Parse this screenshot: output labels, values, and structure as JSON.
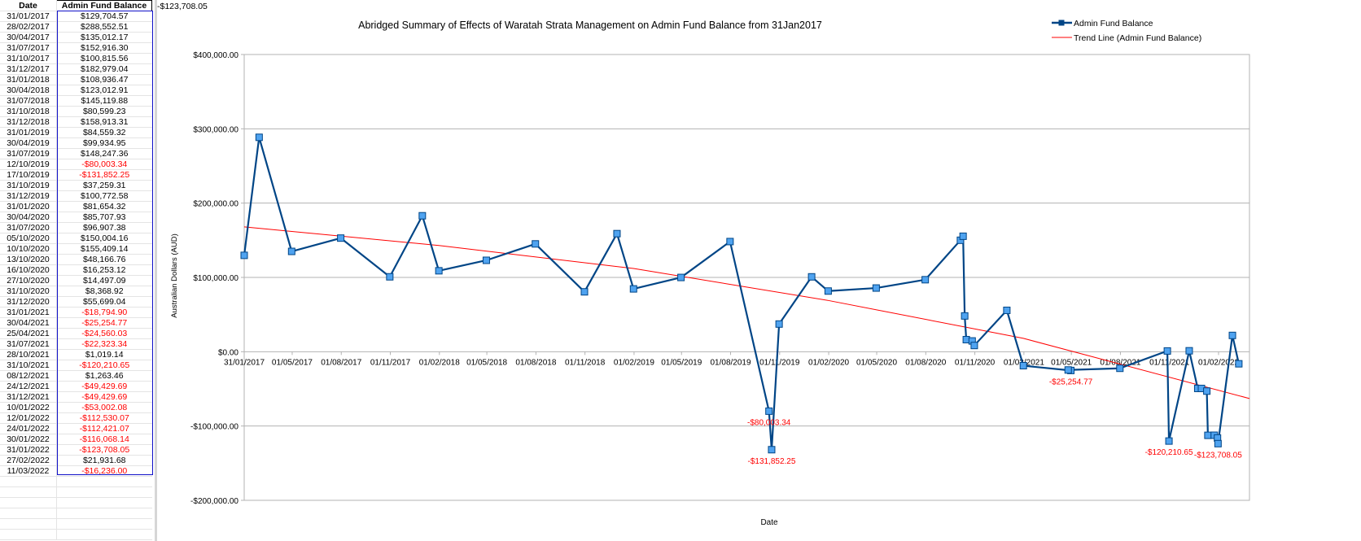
{
  "sheet": {
    "header_date": "Date",
    "header_value": "Admin Fund Balance",
    "overflow_cell": "-$123,708.05",
    "rows": [
      {
        "date": "31/01/2017",
        "value": "$129,704.57"
      },
      {
        "date": "28/02/2017",
        "value": "$288,552.51"
      },
      {
        "date": "30/04/2017",
        "value": "$135,012.17"
      },
      {
        "date": "31/07/2017",
        "value": "$152,916.30"
      },
      {
        "date": "31/10/2017",
        "value": "$100,815.56"
      },
      {
        "date": "31/12/2017",
        "value": "$182,979.04"
      },
      {
        "date": "31/01/2018",
        "value": "$108,936.47"
      },
      {
        "date": "30/04/2018",
        "value": "$123,012.91"
      },
      {
        "date": "31/07/2018",
        "value": "$145,119.88"
      },
      {
        "date": "31/10/2018",
        "value": "$80,599.23"
      },
      {
        "date": "31/12/2018",
        "value": "$158,913.31"
      },
      {
        "date": "31/01/2019",
        "value": "$84,559.32"
      },
      {
        "date": "30/04/2019",
        "value": "$99,934.95"
      },
      {
        "date": "31/07/2019",
        "value": "$148,247.36"
      },
      {
        "date": "12/10/2019",
        "value": "-$80,003.34"
      },
      {
        "date": "17/10/2019",
        "value": "-$131,852.25"
      },
      {
        "date": "31/10/2019",
        "value": "$37,259.31"
      },
      {
        "date": "31/12/2019",
        "value": "$100,772.58"
      },
      {
        "date": "31/01/2020",
        "value": "$81,654.32"
      },
      {
        "date": "30/04/2020",
        "value": "$85,707.93"
      },
      {
        "date": "31/07/2020",
        "value": "$96,907.38"
      },
      {
        "date": "05/10/2020",
        "value": "$150,004.16"
      },
      {
        "date": "10/10/2020",
        "value": "$155,409.14"
      },
      {
        "date": "13/10/2020",
        "value": "$48,166.76"
      },
      {
        "date": "16/10/2020",
        "value": "$16,253.12"
      },
      {
        "date": "27/10/2020",
        "value": "$14,497.09"
      },
      {
        "date": "31/10/2020",
        "value": "$8,368.92"
      },
      {
        "date": "31/12/2020",
        "value": "$55,699.04"
      },
      {
        "date": "31/01/2021",
        "value": "-$18,794.90"
      },
      {
        "date": "30/04/2021",
        "value": "-$25,254.77"
      },
      {
        "date": "25/04/2021",
        "value": "-$24,560.03"
      },
      {
        "date": "31/07/2021",
        "value": "-$22,323.34"
      },
      {
        "date": "28/10/2021",
        "value": "$1,019.14"
      },
      {
        "date": "31/10/2021",
        "value": "-$120,210.65"
      },
      {
        "date": "08/12/2021",
        "value": "$1,263.46"
      },
      {
        "date": "24/12/2021",
        "value": "-$49,429.69"
      },
      {
        "date": "31/12/2021",
        "value": "-$49,429.69"
      },
      {
        "date": "10/01/2022",
        "value": "-$53,002.08"
      },
      {
        "date": "12/01/2022",
        "value": "-$112,530.07"
      },
      {
        "date": "24/01/2022",
        "value": "-$112,421.07"
      },
      {
        "date": "30/01/2022",
        "value": "-$116,068.14"
      },
      {
        "date": "31/01/2022",
        "value": "-$123,708.05"
      },
      {
        "date": "27/02/2022",
        "value": "$21,931.68"
      },
      {
        "date": "11/03/2022",
        "value": "-$16,236.00"
      }
    ]
  },
  "colors": {
    "series": "#004586",
    "marker_fill": "#4fa3f0",
    "trend": "#ff0000",
    "negative_text": "#ff0000",
    "grid": "#b3b3b3",
    "selection": "#1010c8"
  },
  "chart_data": {
    "type": "line",
    "title": "Abridged Summary of Effects of Waratah Strata Management on Admin Fund Balance from 31Jan2017",
    "xlabel": "Date",
    "ylabel": "Australian Dollars (AUD)",
    "ylim": [
      -200000,
      400000
    ],
    "xlim": [
      "2017-01-31",
      "2022-03-31"
    ],
    "grid": true,
    "legend_position": "top-right",
    "y_ticks": [
      {
        "value": 400000,
        "label": "$400,000.00"
      },
      {
        "value": 300000,
        "label": "$300,000.00"
      },
      {
        "value": 200000,
        "label": "$200,000.00"
      },
      {
        "value": 100000,
        "label": "$100,000.00"
      },
      {
        "value": 0,
        "label": "$0.00"
      },
      {
        "value": -100000,
        "label": "-$100,000.00"
      },
      {
        "value": -200000,
        "label": "-$200,000.00"
      }
    ],
    "x_ticks": [
      {
        "date": "2017-01-31",
        "label": "31/01/2017"
      },
      {
        "date": "2017-05-01",
        "label": "01/05/2017"
      },
      {
        "date": "2017-08-01",
        "label": "01/08/2017"
      },
      {
        "date": "2017-11-01",
        "label": "01/11/2017"
      },
      {
        "date": "2018-02-01",
        "label": "01/02/2018"
      },
      {
        "date": "2018-05-01",
        "label": "01/05/2018"
      },
      {
        "date": "2018-08-01",
        "label": "01/08/2018"
      },
      {
        "date": "2018-11-01",
        "label": "01/11/2018"
      },
      {
        "date": "2019-02-01",
        "label": "01/02/2019"
      },
      {
        "date": "2019-05-01",
        "label": "01/05/2019"
      },
      {
        "date": "2019-08-01",
        "label": "01/08/2019"
      },
      {
        "date": "2019-11-01",
        "label": "01/11/2019"
      },
      {
        "date": "2020-02-01",
        "label": "01/02/2020"
      },
      {
        "date": "2020-05-01",
        "label": "01/05/2020"
      },
      {
        "date": "2020-08-01",
        "label": "01/08/2020"
      },
      {
        "date": "2020-11-01",
        "label": "01/11/2020"
      },
      {
        "date": "2021-02-01",
        "label": "01/02/2021"
      },
      {
        "date": "2021-05-01",
        "label": "01/05/2021"
      },
      {
        "date": "2021-08-01",
        "label": "01/08/2021"
      },
      {
        "date": "2021-11-01",
        "label": "01/11/2021"
      },
      {
        "date": "2022-02-01",
        "label": "01/02/2022"
      }
    ],
    "series": [
      {
        "name": "Admin Fund Balance",
        "points": [
          {
            "x": "2017-01-31",
            "y": 129704.57
          },
          {
            "x": "2017-02-28",
            "y": 288552.51
          },
          {
            "x": "2017-04-30",
            "y": 135012.17
          },
          {
            "x": "2017-07-31",
            "y": 152916.3
          },
          {
            "x": "2017-10-31",
            "y": 100815.56
          },
          {
            "x": "2017-12-31",
            "y": 182979.04
          },
          {
            "x": "2018-01-31",
            "y": 108936.47
          },
          {
            "x": "2018-04-30",
            "y": 123012.91
          },
          {
            "x": "2018-07-31",
            "y": 145119.88
          },
          {
            "x": "2018-10-31",
            "y": 80599.23
          },
          {
            "x": "2018-12-31",
            "y": 158913.31
          },
          {
            "x": "2019-01-31",
            "y": 84559.32
          },
          {
            "x": "2019-04-30",
            "y": 99934.95
          },
          {
            "x": "2019-07-31",
            "y": 148247.36
          },
          {
            "x": "2019-10-12",
            "y": -80003.34
          },
          {
            "x": "2019-10-17",
            "y": -131852.25
          },
          {
            "x": "2019-10-31",
            "y": 37259.31
          },
          {
            "x": "2019-12-31",
            "y": 100772.58
          },
          {
            "x": "2020-01-31",
            "y": 81654.32
          },
          {
            "x": "2020-04-30",
            "y": 85707.93
          },
          {
            "x": "2020-07-31",
            "y": 96907.38
          },
          {
            "x": "2020-10-05",
            "y": 150004.16
          },
          {
            "x": "2020-10-10",
            "y": 155409.14
          },
          {
            "x": "2020-10-13",
            "y": 48166.76
          },
          {
            "x": "2020-10-16",
            "y": 16253.12
          },
          {
            "x": "2020-10-27",
            "y": 14497.09
          },
          {
            "x": "2020-10-31",
            "y": 8368.92
          },
          {
            "x": "2020-12-31",
            "y": 55699.04
          },
          {
            "x": "2021-01-31",
            "y": -18794.9
          },
          {
            "x": "2021-04-30",
            "y": -25254.77
          },
          {
            "x": "2021-04-25",
            "y": -24560.03
          },
          {
            "x": "2021-07-31",
            "y": -22323.34
          },
          {
            "x": "2021-10-28",
            "y": 1019.14
          },
          {
            "x": "2021-10-31",
            "y": -120210.65
          },
          {
            "x": "2021-12-08",
            "y": 1263.46
          },
          {
            "x": "2021-12-24",
            "y": -49429.69
          },
          {
            "x": "2021-12-31",
            "y": -49429.69
          },
          {
            "x": "2022-01-10",
            "y": -53002.08
          },
          {
            "x": "2022-01-12",
            "y": -112530.07
          },
          {
            "x": "2022-01-24",
            "y": -112421.07
          },
          {
            "x": "2022-01-30",
            "y": -116068.14
          },
          {
            "x": "2022-01-31",
            "y": -123708.05
          },
          {
            "x": "2022-02-27",
            "y": 21931.68
          },
          {
            "x": "2022-03-11",
            "y": -16236.0
          }
        ]
      },
      {
        "name": "Trend Line (Admin Fund Balance)",
        "kind": "trend",
        "points": [
          {
            "x": "2017-01-31",
            "y": 168000
          },
          {
            "x": "2018-01-31",
            "y": 143000
          },
          {
            "x": "2019-01-31",
            "y": 112000
          },
          {
            "x": "2020-01-31",
            "y": 69000
          },
          {
            "x": "2021-01-31",
            "y": 18000
          },
          {
            "x": "2022-03-31",
            "y": -63000
          }
        ]
      }
    ],
    "annotations": [
      {
        "x": "2019-10-12",
        "y": -80003.34,
        "label": "-$80,003.34"
      },
      {
        "x": "2019-10-17",
        "y": -131852.25,
        "label": "-$131,852.25"
      },
      {
        "x": "2021-04-30",
        "y": -25254.77,
        "label": "-$25,254.77"
      },
      {
        "x": "2021-10-31",
        "y": -120210.65,
        "label": "-$120,210.65"
      },
      {
        "x": "2022-01-31",
        "y": -123708.05,
        "label": "-$123,708.05"
      }
    ]
  }
}
